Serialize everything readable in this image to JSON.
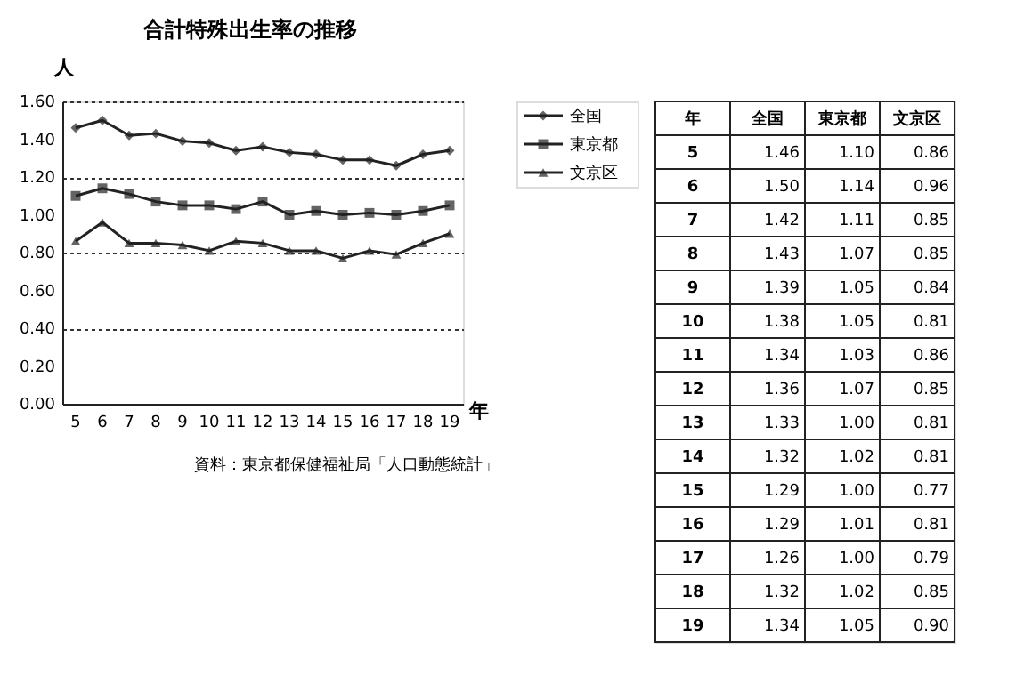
{
  "chart_data": {
    "type": "line",
    "title": "合計特殊出生率の推移",
    "ylabel": "人",
    "xlabel": "年",
    "categories": [
      "5",
      "6",
      "7",
      "8",
      "9",
      "10",
      "11",
      "12",
      "13",
      "14",
      "15",
      "16",
      "17",
      "18",
      "19"
    ],
    "series": [
      {
        "name": "全国",
        "color": "#222222",
        "marker": "diamond",
        "values": [
          1.46,
          1.5,
          1.42,
          1.43,
          1.39,
          1.38,
          1.34,
          1.36,
          1.33,
          1.32,
          1.29,
          1.29,
          1.26,
          1.32,
          1.34
        ]
      },
      {
        "name": "東京都",
        "color": "#222222",
        "marker": "square",
        "values": [
          1.1,
          1.14,
          1.11,
          1.07,
          1.05,
          1.05,
          1.03,
          1.07,
          1.0,
          1.02,
          1.0,
          1.01,
          1.0,
          1.02,
          1.05
        ]
      },
      {
        "name": "文京区",
        "color": "#222222",
        "marker": "triangle",
        "values": [
          0.86,
          0.96,
          0.85,
          0.85,
          0.84,
          0.81,
          0.86,
          0.85,
          0.81,
          0.81,
          0.77,
          0.81,
          0.79,
          0.85,
          0.9
        ]
      }
    ],
    "ylim": [
      0,
      1.6
    ],
    "yticks": [
      {
        "value": 0,
        "label": "0.00"
      },
      {
        "value": 0.2,
        "label": "0.20"
      },
      {
        "value": 0.4,
        "label": "0.40"
      },
      {
        "value": 0.6,
        "label": "0.60"
      },
      {
        "value": 0.8,
        "label": "0.80"
      },
      {
        "value": 1.0,
        "label": "1.00"
      },
      {
        "value": 1.2,
        "label": "1.20"
      },
      {
        "value": 1.4,
        "label": "1.40"
      },
      {
        "value": 1.6,
        "label": "1.60"
      }
    ],
    "grid": "y",
    "legend": "right",
    "value_labels": [
      [
        "1.46",
        "1.50",
        "1.42",
        "1.43",
        "1.39",
        "1.38",
        "1.34",
        "1.36",
        "1.33",
        "1.32",
        "1.29",
        "1.29",
        "1.26",
        "1.32",
        "1.34"
      ],
      [
        "1.10",
        "1.14",
        "1.11",
        "1.07",
        "1.05",
        "1.05",
        "1.03",
        "1.07",
        "1.00",
        "1.02",
        "1.00",
        "1.01",
        "1.00",
        "1.02",
        "1.05"
      ],
      [
        "0.86",
        "0.96",
        "0.85",
        "0.85",
        "0.84",
        "0.81",
        "0.86",
        "0.85",
        "0.81",
        "0.81",
        "0.77",
        "0.81",
        "0.79",
        "0.85",
        "0.90"
      ]
    ],
    "annotations": [
      "資料：東京都保健福祉局「人口動態統計」"
    ]
  }
}
